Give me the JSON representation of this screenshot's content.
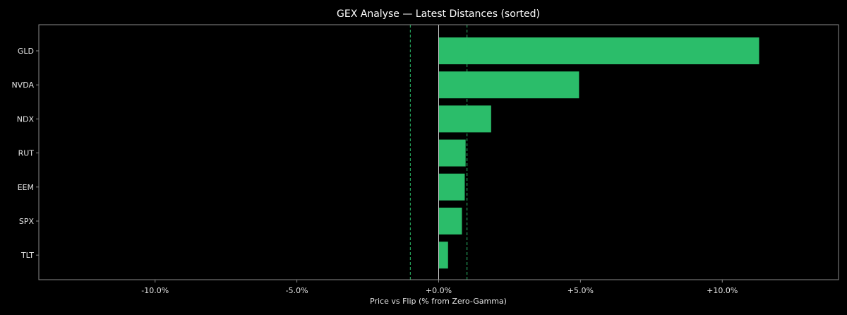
{
  "chart_data": {
    "type": "bar",
    "orientation": "horizontal",
    "title": "GEX Analyse — Latest Distances (sorted)",
    "xlabel": "Price vs Flip (% from Zero-Gamma)",
    "ylabel": "",
    "categories": [
      "GLD",
      "NVDA",
      "NDX",
      "RUT",
      "EEM",
      "SPX",
      "TLT"
    ],
    "values": [
      11.3,
      4.95,
      1.85,
      0.95,
      0.92,
      0.82,
      0.33
    ],
    "xlim": [
      -14.1,
      14.1
    ],
    "xticks": [
      -10,
      -5,
      0,
      5,
      10
    ],
    "xtick_labels": [
      "-10.0%",
      "-5.0%",
      "+0.0%",
      "+5.0%",
      "+10.0%"
    ],
    "reference_lines": [
      {
        "x": 0,
        "style": "solid"
      },
      {
        "x": -1,
        "style": "dashed"
      },
      {
        "x": 1,
        "style": "dashed"
      }
    ],
    "grid": false,
    "colors": {
      "background": "#000000",
      "bar": "#2bbd6a",
      "zero_line": "#d9d9d9",
      "threshold_line": "#2bbd6a",
      "frame": "#8a8a8a"
    }
  }
}
